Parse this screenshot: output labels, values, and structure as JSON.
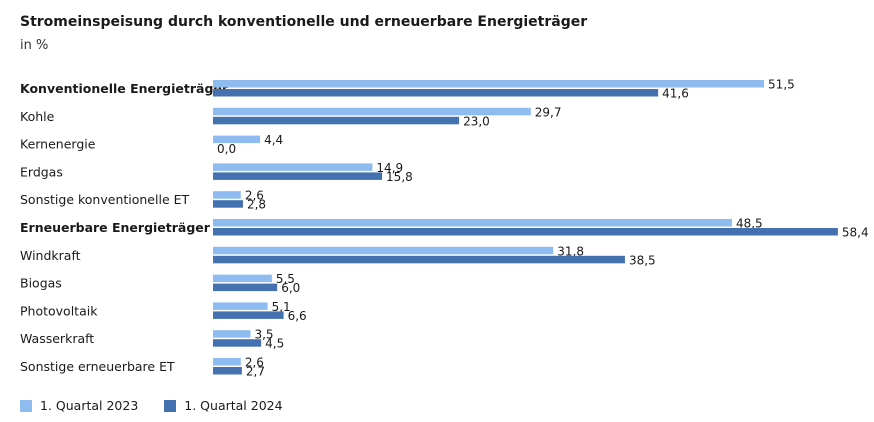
{
  "header": {
    "title": "Stromeinspeisung durch konventionelle und erneuerbare Energieträger",
    "subtitle": "in %"
  },
  "colors": {
    "series_2023": "#8ebcf0",
    "series_2024": "#4472b0"
  },
  "chart_data": {
    "type": "bar",
    "orientation": "horizontal",
    "categories": [
      "Konventionelle Energieträger",
      "Kohle",
      "Kernenergie",
      "Erdgas",
      "Sonstige konventionelle ET",
      "Erneuerbare Energieträger",
      "Windkraft",
      "Biogas",
      "Photovoltaik",
      "Wasserkraft",
      "Sonstige erneuerbare ET"
    ],
    "bold_categories": [
      "Konventionelle Energieträger",
      "Erneuerbare Energieträger"
    ],
    "series": [
      {
        "name": "1. Quartal 2023",
        "values": [
          51.5,
          29.7,
          4.4,
          14.9,
          2.6,
          48.5,
          31.8,
          5.5,
          5.1,
          3.5,
          2.6
        ],
        "labels": [
          "51,5",
          "29,7",
          "4,4",
          "14,9",
          "2,6",
          "48,5",
          "31,8",
          "5,5",
          "5,1",
          "3,5",
          "2,6"
        ]
      },
      {
        "name": "1. Quartal 2024",
        "values": [
          41.6,
          23.0,
          0.0,
          15.8,
          2.8,
          58.4,
          38.5,
          6.0,
          6.6,
          4.5,
          2.7
        ],
        "labels": [
          "41,6",
          "23,0",
          "0,0",
          "15,8",
          "2,8",
          "58,4",
          "38,5",
          "6,0",
          "6,6",
          "4,5",
          "2,7"
        ]
      }
    ],
    "title": "Stromeinspeisung durch konventionelle und erneuerbare Energieträger",
    "ylabel": "in %",
    "legend_position": "bottom-left",
    "grid": false
  }
}
